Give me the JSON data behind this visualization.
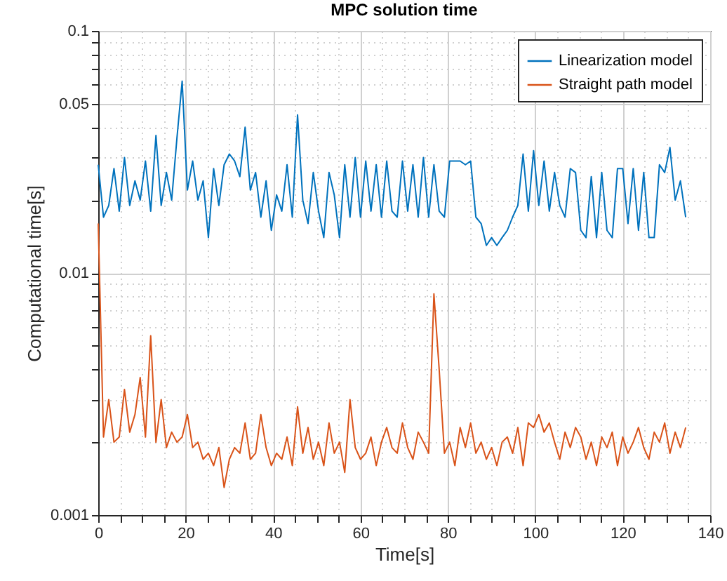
{
  "chart_data": {
    "type": "line",
    "title": "MPC solution time",
    "xlabel": "Time[s]",
    "ylabel": "Computational time[s]",
    "x": [
      0,
      1.2,
      2.4,
      3.6,
      4.8,
      6,
      7.2,
      8.4,
      9.6,
      10.8,
      12,
      13.2,
      14.4,
      15.6,
      16.8,
      18,
      19.2,
      20.4,
      21.6,
      22.8,
      24,
      25.2,
      26.4,
      27.6,
      28.8,
      30,
      31.2,
      32.4,
      33.6,
      34.8,
      36,
      37.2,
      38.4,
      39.6,
      40.8,
      42,
      43.2,
      44.4,
      45.6,
      46.8,
      48,
      49.2,
      50.4,
      51.6,
      52.8,
      54,
      55.2,
      56.4,
      57.6,
      58.8,
      60,
      61.2,
      62.4,
      63.6,
      64.8,
      66,
      67.2,
      68.4,
      69.6,
      70.8,
      72,
      73.2,
      74.4,
      75.6,
      76.8,
      78,
      79.2,
      80.4,
      81.6,
      82.8,
      84,
      85.2,
      86.4,
      87.6,
      88.8,
      90,
      91.2,
      92.4,
      93.6,
      94.8,
      96,
      97.2,
      98.4,
      99.6,
      100.8,
      102,
      103.2,
      104.4,
      105.6,
      106.8,
      108,
      109.2,
      110.4,
      111.6,
      112.8,
      114,
      115.2,
      116.4,
      117.6,
      118.8,
      120,
      121.2,
      122.4,
      123.6,
      124.8,
      126,
      127.2,
      128.4,
      129.6,
      130.8,
      132,
      133.2,
      134.4
    ],
    "series": [
      {
        "name": "Linearization model",
        "color": "#0072bd",
        "values": [
          0.028,
          0.017,
          0.019,
          0.027,
          0.018,
          0.03,
          0.019,
          0.024,
          0.02,
          0.029,
          0.018,
          0.037,
          0.019,
          0.026,
          0.02,
          0.036,
          0.062,
          0.022,
          0.029,
          0.02,
          0.024,
          0.014,
          0.027,
          0.019,
          0.028,
          0.031,
          0.029,
          0.025,
          0.04,
          0.022,
          0.026,
          0.017,
          0.024,
          0.015,
          0.021,
          0.018,
          0.028,
          0.017,
          0.045,
          0.02,
          0.016,
          0.026,
          0.018,
          0.014,
          0.026,
          0.021,
          0.014,
          0.028,
          0.017,
          0.03,
          0.017,
          0.029,
          0.018,
          0.028,
          0.017,
          0.029,
          0.018,
          0.017,
          0.029,
          0.018,
          0.028,
          0.017,
          0.03,
          0.017,
          0.028,
          0.018,
          0.017,
          0.029,
          0.029,
          0.029,
          0.028,
          0.029,
          0.017,
          0.016,
          0.013,
          0.014,
          0.013,
          0.014,
          0.015,
          0.017,
          0.019,
          0.031,
          0.018,
          0.032,
          0.019,
          0.029,
          0.018,
          0.026,
          0.019,
          0.017,
          0.027,
          0.026,
          0.015,
          0.014,
          0.025,
          0.014,
          0.026,
          0.015,
          0.014,
          0.027,
          0.027,
          0.016,
          0.027,
          0.015,
          0.026,
          0.014,
          0.014,
          0.028,
          0.026,
          0.033,
          0.02,
          0.024,
          0.017
        ]
      },
      {
        "name": "Straight path model",
        "color": "#d95319",
        "values": [
          0.016,
          0.0021,
          0.003,
          0.002,
          0.0021,
          0.0033,
          0.0022,
          0.0026,
          0.0037,
          0.0021,
          0.0055,
          0.002,
          0.003,
          0.0019,
          0.0022,
          0.002,
          0.0021,
          0.0026,
          0.0019,
          0.002,
          0.0017,
          0.0018,
          0.0016,
          0.0019,
          0.0013,
          0.0017,
          0.0019,
          0.0018,
          0.0024,
          0.0017,
          0.0018,
          0.0026,
          0.0019,
          0.0016,
          0.0018,
          0.0017,
          0.0021,
          0.0016,
          0.0028,
          0.0018,
          0.0023,
          0.0017,
          0.002,
          0.0016,
          0.0024,
          0.0018,
          0.002,
          0.0015,
          0.003,
          0.0019,
          0.0017,
          0.0018,
          0.0021,
          0.0016,
          0.002,
          0.0023,
          0.0019,
          0.0018,
          0.0024,
          0.0019,
          0.0017,
          0.0022,
          0.002,
          0.0018,
          0.0082,
          0.004,
          0.0018,
          0.002,
          0.0016,
          0.0023,
          0.0019,
          0.0024,
          0.0018,
          0.002,
          0.0017,
          0.0019,
          0.0016,
          0.002,
          0.0021,
          0.0018,
          0.0023,
          0.0016,
          0.0024,
          0.0023,
          0.0026,
          0.0022,
          0.0024,
          0.002,
          0.0017,
          0.0022,
          0.0019,
          0.0023,
          0.0021,
          0.0017,
          0.002,
          0.0016,
          0.0021,
          0.0019,
          0.0022,
          0.0016,
          0.0021,
          0.0018,
          0.002,
          0.0023,
          0.0019,
          0.0017,
          0.0022,
          0.002,
          0.0024,
          0.0018,
          0.0022,
          0.0019,
          0.0023
        ]
      }
    ],
    "xlim": [
      0,
      140
    ],
    "xticks": [
      0,
      {
        "value": 5,
        "label": null
      },
      {
        "value": 10,
        "label": null
      },
      {
        "value": 15,
        "label": null
      },
      20,
      {
        "value": 25,
        "label": null
      },
      {
        "value": 30,
        "label": null
      },
      {
        "value": 35,
        "label": null
      },
      40,
      {
        "value": 45,
        "label": null
      },
      {
        "value": 50,
        "label": null
      },
      {
        "value": 55,
        "label": null
      },
      60,
      {
        "value": 65,
        "label": null
      },
      {
        "value": 70,
        "label": null
      },
      {
        "value": 75,
        "label": null
      },
      80,
      {
        "value": 85,
        "label": null
      },
      {
        "value": 90,
        "label": null
      },
      {
        "value": 95,
        "label": null
      },
      100,
      {
        "value": 105,
        "label": null
      },
      {
        "value": 110,
        "label": null
      },
      {
        "value": 115,
        "label": null
      },
      120,
      {
        "value": 125,
        "label": null
      },
      {
        "value": 130,
        "label": null
      },
      {
        "value": 135,
        "label": null
      },
      140
    ],
    "ylim": [
      0.001,
      0.1
    ],
    "yticks": [
      0.001,
      {
        "value": 0.002,
        "label": null
      },
      {
        "value": 0.003,
        "label": null
      },
      {
        "value": 0.004,
        "label": null
      },
      {
        "value": 0.005,
        "label": null
      },
      {
        "value": 0.006,
        "label": null
      },
      {
        "value": 0.007,
        "label": null
      },
      {
        "value": 0.008,
        "label": null
      },
      {
        "value": 0.009,
        "label": null
      },
      0.01,
      {
        "value": 0.02,
        "label": null
      },
      {
        "value": 0.03,
        "label": null
      },
      {
        "value": 0.04,
        "label": null
      },
      0.05,
      {
        "value": 0.06,
        "label": null
      },
      {
        "value": 0.07,
        "label": null
      },
      {
        "value": 0.08,
        "label": null
      },
      {
        "value": 0.09,
        "label": null
      },
      0.1
    ],
    "log": "y",
    "grid": true,
    "legend": "top right",
    "line_style": "solid",
    "marker": "none"
  }
}
